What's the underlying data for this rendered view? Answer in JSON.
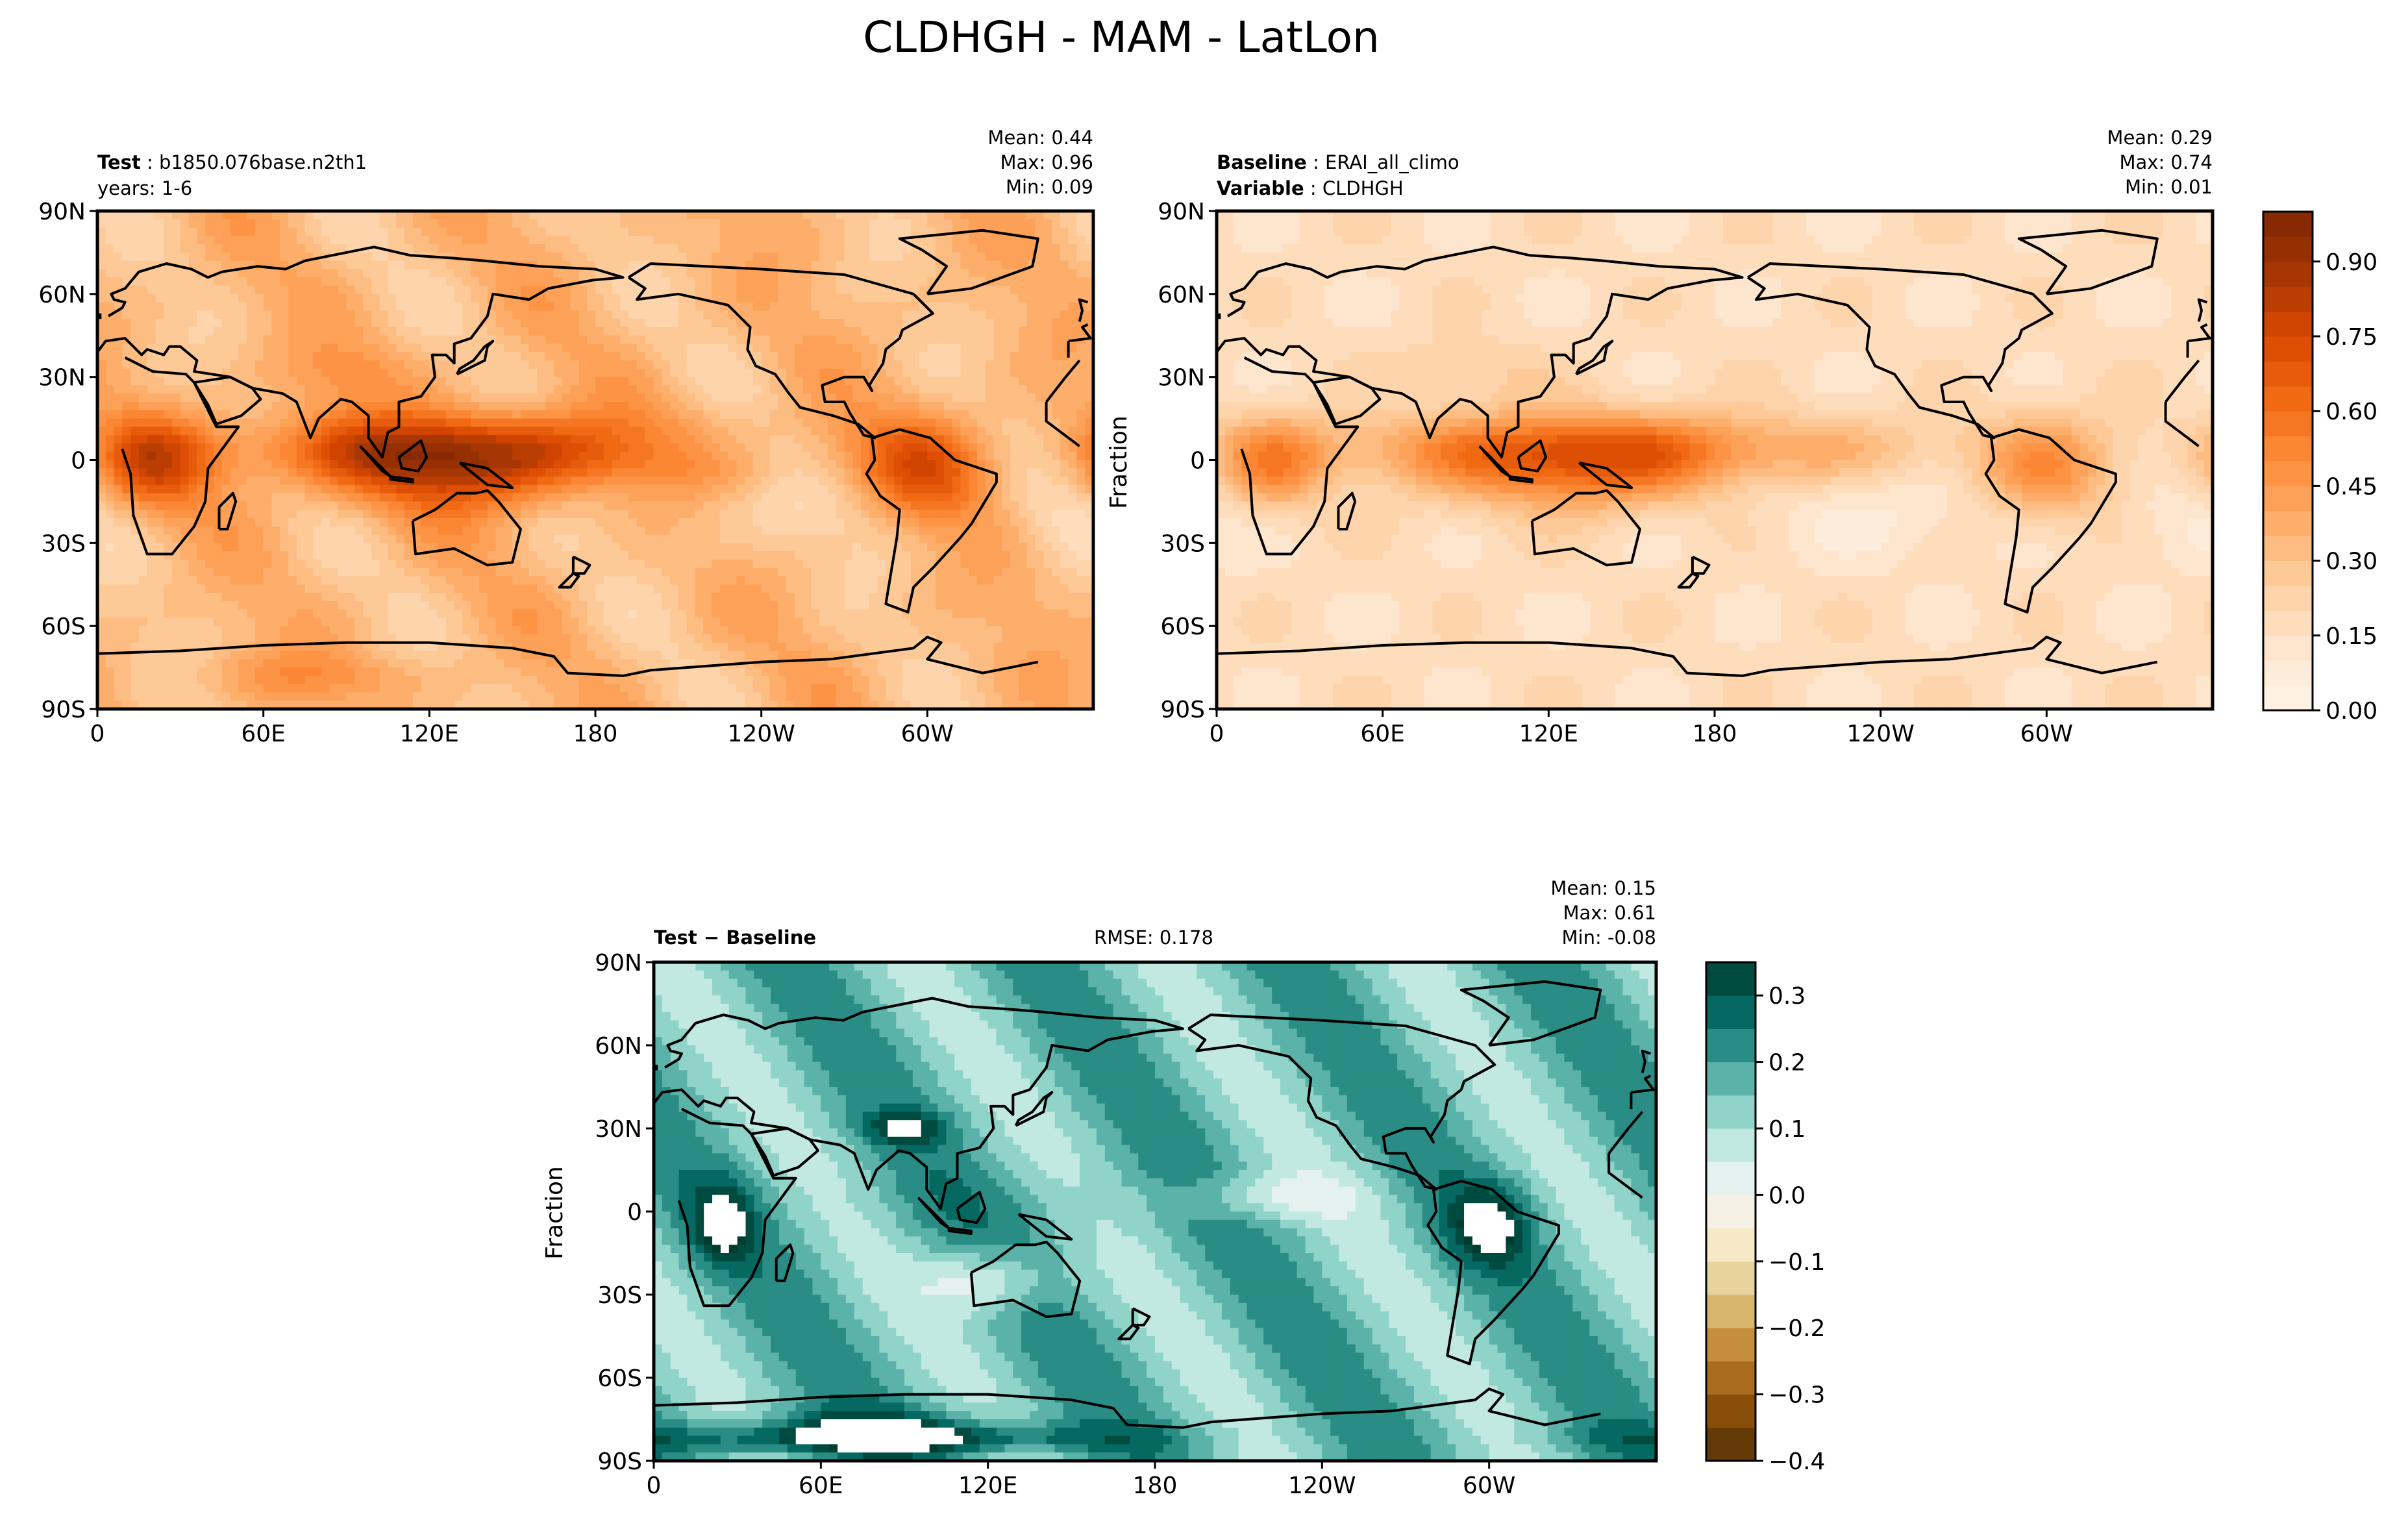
{
  "figure": {
    "title": "CLDHGH - MAM - LatLon"
  },
  "colors": {
    "orange_scale": [
      "#fff5eb",
      "#fee6ce",
      "#fdd0a2",
      "#fdae6b",
      "#fd8d3c",
      "#f16913",
      "#d94801",
      "#a63603",
      "#7f2704"
    ],
    "diff_positive": [
      "#f5f5f5",
      "#c7eae5",
      "#80cdc1",
      "#35978f",
      "#01665e",
      "#003c30"
    ],
    "diff_negative": [
      "#f5f5f5",
      "#f6e8c3",
      "#dfc27d",
      "#bf812d",
      "#8c510a",
      "#543005"
    ],
    "coastline": "#000000"
  },
  "panels": {
    "test": {
      "label_bold": "Test",
      "label_value": "b1850.076base.n2th1",
      "line2": "years: 1-6",
      "stats": {
        "mean": "Mean:  0.44",
        "max": "Max:  0.96",
        "min": "Min:  0.09"
      }
    },
    "baseline": {
      "label_bold": "Baseline",
      "label_value": "ERAI_all_climo",
      "line2_bold": "Variable",
      "line2_value": "CLDHGH",
      "ylabel": "Fraction",
      "stats": {
        "mean": "Mean:  0.29",
        "max": "Max:  0.74",
        "min": "Min:  0.01"
      }
    },
    "diff": {
      "label": "Test − Baseline",
      "rmse": "RMSE: 0.178",
      "ylabel": "Fraction",
      "stats": {
        "mean": "Mean:  0.15",
        "max": "Max:  0.61",
        "min": "Min: -0.08"
      }
    }
  },
  "colorbars": {
    "main": {
      "ticks": [
        "0.00",
        "0.15",
        "0.30",
        "0.45",
        "0.60",
        "0.75",
        "0.90"
      ]
    },
    "diff": {
      "ticks": [
        "−0.4",
        "−0.3",
        "−0.2",
        "−0.1",
        "0.0",
        "0.1",
        "0.2",
        "0.3"
      ]
    }
  },
  "chart_data": [
    {
      "type": "heatmap",
      "panel": "test",
      "variable": "CLDHGH",
      "xlim": [
        0,
        360
      ],
      "ylim": [
        -90,
        90
      ],
      "xticks": [
        "0",
        "60E",
        "120E",
        "180",
        "120W",
        "60W"
      ],
      "yticks": [
        "90N",
        "60N",
        "30N",
        "0",
        "30S",
        "60S",
        "90S"
      ],
      "mean": 0.44,
      "max": 0.96,
      "min": 0.09,
      "clim": [
        0.0,
        1.0
      ]
    },
    {
      "type": "heatmap",
      "panel": "baseline",
      "variable": "CLDHGH",
      "xlim": [
        0,
        360
      ],
      "ylim": [
        -90,
        90
      ],
      "xticks": [
        "0",
        "60E",
        "120E",
        "180",
        "120W",
        "60W"
      ],
      "yticks": [
        "90N",
        "60N",
        "30N",
        "0",
        "30S",
        "60S",
        "90S"
      ],
      "ylabel": "Fraction",
      "mean": 0.29,
      "max": 0.74,
      "min": 0.01,
      "clim": [
        0.0,
        1.0
      ]
    },
    {
      "type": "heatmap",
      "panel": "diff",
      "variable": "CLDHGH",
      "xlim": [
        0,
        360
      ],
      "ylim": [
        -90,
        90
      ],
      "xticks": [
        "0",
        "60E",
        "120E",
        "180",
        "120W",
        "60W"
      ],
      "yticks": [
        "90N",
        "60N",
        "30N",
        "0",
        "30S",
        "60S",
        "90S"
      ],
      "ylabel": "Fraction",
      "mean": 0.15,
      "max": 0.61,
      "min": -0.08,
      "rmse": 0.178,
      "clim": [
        -0.4,
        0.35
      ]
    }
  ]
}
